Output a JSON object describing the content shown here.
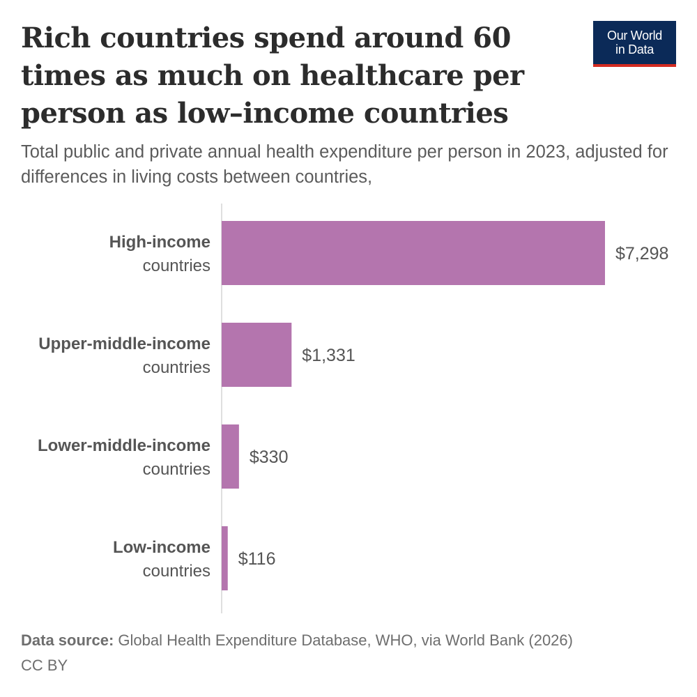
{
  "header": {
    "title": "Rich countries spend around 60 times as much on healthcare per person as low–income countries",
    "subtitle": "Total public and private annual health expenditure per person in 2023, adjusted for differences in living costs between countries,",
    "logo_line1": "Our World",
    "logo_line2": "in Data"
  },
  "chart_data": {
    "type": "bar",
    "orientation": "horizontal",
    "categories": [
      {
        "bold": "High-income",
        "rest": "countries"
      },
      {
        "bold": "Upper-middle-income",
        "rest": "countries"
      },
      {
        "bold": "Lower-middle-income",
        "rest": "countries"
      },
      {
        "bold": "Low-income",
        "rest": "countries"
      }
    ],
    "values": [
      7298,
      1331,
      330,
      116
    ],
    "value_labels": [
      "$7,298",
      "$1,331",
      "$330",
      "$116"
    ],
    "xlim": [
      0,
      7298
    ],
    "bar_color": "#b475ae",
    "axis_color": "#bfbfbf",
    "grid": false
  },
  "footer": {
    "source_label": "Data source:",
    "source_text": "Global Health Expenditure Database, WHO, via World Bank (2026)",
    "license": "CC BY"
  }
}
